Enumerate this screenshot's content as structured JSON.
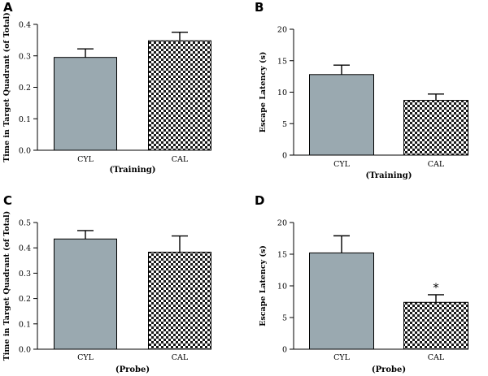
{
  "colors": {
    "cyl_fill": "#9aa9b0",
    "checker_dark": "#1a1a1a",
    "checker_light": "#ffffff",
    "axis": "#000000"
  },
  "chart_data": [
    {
      "panel": "A",
      "type": "bar",
      "categories": [
        "CYL",
        "CAL"
      ],
      "values": [
        0.295,
        0.348
      ],
      "errors": [
        0.027,
        0.027
      ],
      "fills": [
        "solid",
        "checker"
      ],
      "xlabel": "(Training)",
      "ylabel": "Time in Target Quadrant (of Total)",
      "ylim": [
        0,
        0.4
      ],
      "yticks": [
        0.0,
        0.1,
        0.2,
        0.3,
        0.4
      ],
      "ytick_labels": [
        "0.0",
        "0.1",
        "0.2",
        "0.3",
        "0.4"
      ],
      "annotations": []
    },
    {
      "panel": "B",
      "type": "bar",
      "categories": [
        "CYL",
        "CAL"
      ],
      "values": [
        12.8,
        8.7
      ],
      "errors": [
        1.5,
        1.0
      ],
      "fills": [
        "solid",
        "checker"
      ],
      "xlabel": "(Training)",
      "ylabel": "Escape Latency (s)",
      "ylim": [
        0,
        20
      ],
      "yticks": [
        0,
        5,
        10,
        15,
        20
      ],
      "ytick_labels": [
        "0",
        "5",
        "10",
        "15",
        "20"
      ],
      "annotations": []
    },
    {
      "panel": "C",
      "type": "bar",
      "categories": [
        "CYL",
        "CAL"
      ],
      "values": [
        0.435,
        0.383
      ],
      "errors": [
        0.033,
        0.064
      ],
      "fills": [
        "solid",
        "checker"
      ],
      "xlabel": "(Probe)",
      "ylabel": "Time in Target Quadrant (of Total)",
      "ylim": [
        0,
        0.5
      ],
      "yticks": [
        0.0,
        0.1,
        0.2,
        0.3,
        0.4,
        0.5
      ],
      "ytick_labels": [
        "0.0",
        "0.1",
        "0.2",
        "0.3",
        "0.4",
        "0.5"
      ],
      "annotations": []
    },
    {
      "panel": "D",
      "type": "bar",
      "categories": [
        "CYL",
        "CAL"
      ],
      "values": [
        15.2,
        7.4
      ],
      "errors": [
        2.7,
        1.2
      ],
      "fills": [
        "solid",
        "checker"
      ],
      "xlabel": "(Probe)",
      "ylabel": "Escape Latency (s)",
      "ylim": [
        0,
        20
      ],
      "yticks": [
        0,
        5,
        10,
        15,
        20
      ],
      "ytick_labels": [
        "0",
        "5",
        "10",
        "15",
        "20"
      ],
      "annotations": [
        {
          "category": "CAL",
          "text": "*"
        }
      ]
    }
  ]
}
